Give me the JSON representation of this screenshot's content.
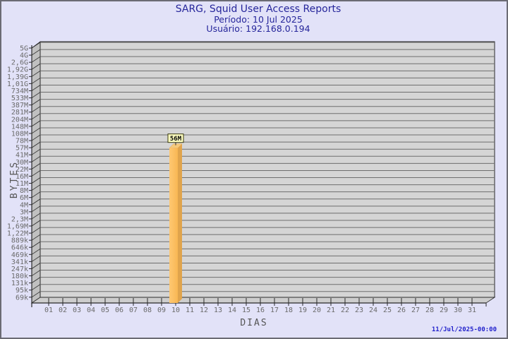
{
  "header": {
    "title": "SARG, Squid User Access Reports",
    "period": "Período: 10 Jul 2025",
    "user": "Usuário: 192.168.0.194"
  },
  "footer": {
    "timestamp": "11/Jul/2025-00:00"
  },
  "chart_data": {
    "type": "bar",
    "style": "3d-single-series",
    "title": "SARG, Squid User Access Reports",
    "subtitle_lines": [
      "Período: 10 Jul 2025",
      "Usuário: 192.168.0.194"
    ],
    "xlabel": "DIAS",
    "ylabel": "BYTES",
    "grid": "horizontal",
    "legend": "none",
    "y_scale": "logarithmic-ticks",
    "y_ticks": [
      "5G",
      "4G",
      "2,6G",
      "1,92G",
      "1,39G",
      "1,01G",
      "734M",
      "533M",
      "387M",
      "281M",
      "204M",
      "148M",
      "108M",
      "78M",
      "57M",
      "41M",
      "30M",
      "22M",
      "16M",
      "11M",
      "8M",
      "6M",
      "4M",
      "3M",
      "2,3M",
      "1,69M",
      "1,22M",
      "889k",
      "646k",
      "469k",
      "341k",
      "247k",
      "180k",
      "131k",
      "95k",
      "69k"
    ],
    "categories": [
      "01",
      "02",
      "03",
      "04",
      "05",
      "06",
      "07",
      "08",
      "09",
      "10",
      "11",
      "12",
      "13",
      "14",
      "15",
      "16",
      "17",
      "18",
      "19",
      "20",
      "21",
      "22",
      "23",
      "24",
      "25",
      "26",
      "27",
      "28",
      "29",
      "30",
      "31"
    ],
    "bars": [
      {
        "category": "10",
        "value": "56M",
        "annotation": "56M"
      }
    ],
    "colors": {
      "page_bg": "#e2e2f8",
      "border": "#6b6b74",
      "title_color": "#26269b",
      "timestamp_color": "#2222cc",
      "panel_bg": "#d5d5d5",
      "wall_bg": "#c0c0c0",
      "floor_bg": "#cdcdcd",
      "gridline": "#6e6e6e",
      "axis_line": "#2a2a2a",
      "tick_label": "#6a6a6a",
      "axis_label": "#555555",
      "bar_front_light": "#ffc873",
      "bar_front": "#f8b753",
      "bar_side": "#e0a44c",
      "bar_top": "#f5c97c",
      "annotation_bg": "#ffffc0",
      "annotation_border": "#3a3a10",
      "annotation_text": "#000000"
    }
  }
}
